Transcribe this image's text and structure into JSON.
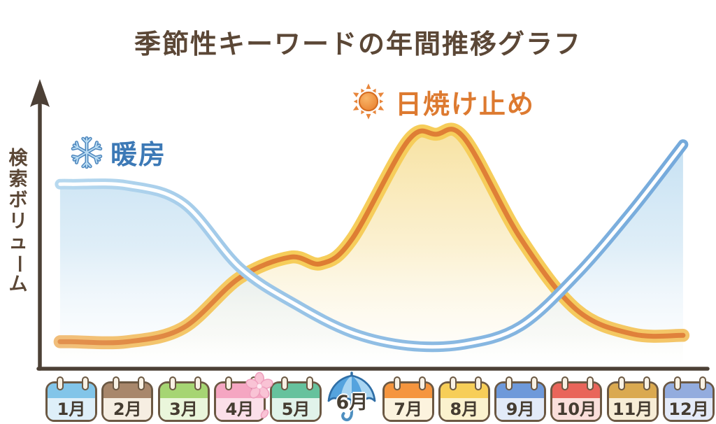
{
  "title": "季節性キーワードの年間推移グラフ",
  "y_axis": {
    "label": "検索ボリューム"
  },
  "legend": {
    "heating": {
      "label": "暖房",
      "icon": "snowflake-icon",
      "color": "#3C79B6"
    },
    "sunscreen": {
      "label": "日焼け止め",
      "icon": "sun-icon",
      "color": "#DD7A30"
    }
  },
  "chart_data": {
    "type": "line",
    "title": "季節性キーワードの年間推移グラフ",
    "ylabel": "検索ボリューム",
    "xlabel": "",
    "categories": [
      "1月",
      "2月",
      "3月",
      "4月",
      "5月",
      "6月",
      "7月",
      "8月",
      "9月",
      "10月",
      "11月",
      "12月"
    ],
    "y_range_note": "relative search volume 0–100, axis unlabeled",
    "legend_position": "inside-top",
    "grid": false,
    "series": [
      {
        "name": "暖房",
        "color": "#7FB1DD",
        "points_month_value": [
          [
            0.8,
            71.5
          ],
          [
            1,
            71.5
          ],
          [
            2,
            71
          ],
          [
            3,
            64
          ],
          [
            4,
            39
          ],
          [
            5,
            24.5
          ],
          [
            6,
            13.5
          ],
          [
            7,
            8.5
          ],
          [
            8,
            9
          ],
          [
            9,
            16
          ],
          [
            10,
            36
          ],
          [
            11,
            61.5
          ],
          [
            11.9,
            87
          ]
        ]
      },
      {
        "name": "日焼け止め",
        "color": "#E0823A",
        "points_month_value": [
          [
            0.8,
            10
          ],
          [
            1,
            10
          ],
          [
            2,
            10
          ],
          [
            3,
            15.5
          ],
          [
            4,
            35
          ],
          [
            4.9,
            43
          ],
          [
            5.45,
            40.5
          ],
          [
            6,
            50
          ],
          [
            7,
            88.5
          ],
          [
            7.5,
            91
          ],
          [
            8,
            89.5
          ],
          [
            9,
            50.5
          ],
          [
            10,
            22.5
          ],
          [
            11,
            13
          ],
          [
            11.9,
            12.5
          ]
        ]
      }
    ]
  },
  "months": [
    {
      "label": "1月",
      "type": "calendar",
      "header_color": "#82C5E9",
      "body_color": "#DEEFF9"
    },
    {
      "label": "2月",
      "type": "calendar",
      "header_color": "#A8876B",
      "body_color": "#F6EEE2"
    },
    {
      "label": "3月",
      "type": "calendar",
      "header_color": "#A6D573",
      "body_color": "#EAF6DB"
    },
    {
      "label": "4月",
      "type": "calendar",
      "header_color": "#F5A6C2",
      "body_color": "#FBDFE9",
      "decoration": "cherry-blossom-icon"
    },
    {
      "label": "5月",
      "type": "calendar",
      "header_color": "#66C29D",
      "body_color": "#E1F3EA"
    },
    {
      "label": "6月",
      "type": "umbrella",
      "decoration": "umbrella-icon"
    },
    {
      "label": "7月",
      "type": "calendar",
      "header_color": "#F5953E",
      "body_color": "#FCF3DE"
    },
    {
      "label": "8月",
      "type": "calendar",
      "header_color": "#F7CE58",
      "body_color": "#FBF2CE"
    },
    {
      "label": "9月",
      "type": "calendar",
      "header_color": "#6E99DA",
      "body_color": "#E2EAF8"
    },
    {
      "label": "10月",
      "type": "calendar",
      "header_color": "#E9655A",
      "body_color": "#FADFDB"
    },
    {
      "label": "11月",
      "type": "calendar",
      "header_color": "#DAA950",
      "body_color": "#F7EDD6"
    },
    {
      "label": "12月",
      "type": "calendar",
      "header_color": "#93ACDE",
      "body_color": "#E4EAF8"
    }
  ],
  "colors": {
    "title_text": "#5B4736",
    "axis": "#4C4036",
    "month_text": "#453C31",
    "heating_fill": "#D4E8F5",
    "sunscreen_fill": "#FAEDC5"
  }
}
